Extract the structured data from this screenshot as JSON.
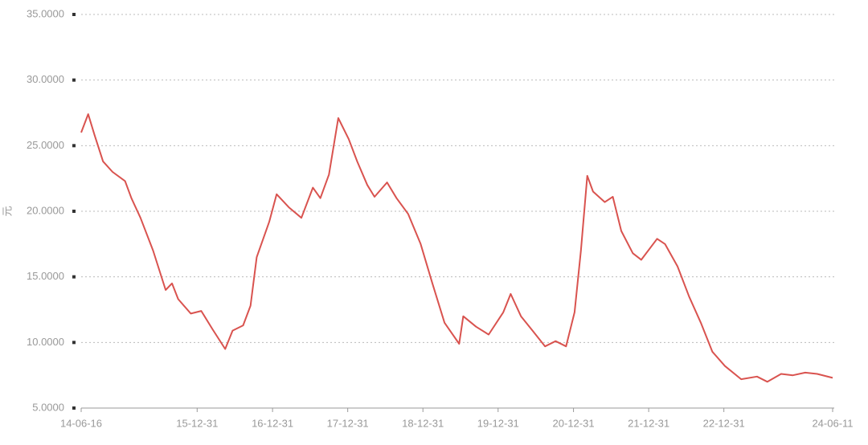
{
  "chart_data": {
    "type": "line",
    "y_label": "元",
    "xlim": [
      "14-06-16",
      "24-06-11"
    ],
    "xticks": [
      "14-06-16",
      "15-12-31",
      "16-12-31",
      "17-12-31",
      "18-12-31",
      "19-12-31",
      "20-12-31",
      "21-12-31",
      "22-12-31",
      "24-06-11"
    ],
    "ylim": [
      5,
      35
    ],
    "yticks": [
      {
        "value": 5,
        "label": "5.0000"
      },
      {
        "value": 10,
        "label": "10.0000"
      },
      {
        "value": 15,
        "label": "15.0000"
      },
      {
        "value": 20,
        "label": "20.0000"
      },
      {
        "value": 25,
        "label": "25.0000"
      },
      {
        "value": 30,
        "label": "30.0000"
      },
      {
        "value": 35,
        "label": "35.0000"
      }
    ],
    "grid": true,
    "x": [
      "14-06-16",
      "14-07-20",
      "14-08-20",
      "14-09-30",
      "14-11-15",
      "15-01-15",
      "15-02-15",
      "15-03-31",
      "15-05-31",
      "15-07-31",
      "15-08-31",
      "15-09-30",
      "15-11-30",
      "16-01-20",
      "16-03-15",
      "16-05-15",
      "16-06-20",
      "16-08-10",
      "16-09-15",
      "16-10-15",
      "16-12-15",
      "17-01-20",
      "17-03-20",
      "17-05-20",
      "17-07-15",
      "17-08-20",
      "17-10-01",
      "17-11-15",
      "18-01-05",
      "18-02-15",
      "18-04-05",
      "18-05-10",
      "18-07-10",
      "18-08-25",
      "18-10-20",
      "18-12-20",
      "19-02-15",
      "19-04-15",
      "19-06-25",
      "19-07-15",
      "19-09-15",
      "19-11-15",
      "20-01-25",
      "20-03-01",
      "20-04-20",
      "20-06-15",
      "20-08-15",
      "20-10-05",
      "20-11-25",
      "21-01-05",
      "21-02-05",
      "21-03-08",
      "21-04-05",
      "21-06-01",
      "21-07-10",
      "21-08-20",
      "21-10-15",
      "21-11-25",
      "22-02-10",
      "22-03-20",
      "22-05-20",
      "22-07-15",
      "22-09-10",
      "22-11-05",
      "23-01-05",
      "23-03-25",
      "23-06-10",
      "23-07-30",
      "23-10-05",
      "23-12-01",
      "24-01-30",
      "24-03-28",
      "24-06-11"
    ],
    "series": [
      {
        "color": "#d9534f",
        "values": [
          26,
          27.4,
          25.8,
          23.8,
          23,
          22.3,
          21,
          19.5,
          17,
          14,
          14.5,
          13.3,
          12.2,
          12.4,
          11,
          9.5,
          10.9,
          11.3,
          12.8,
          16.5,
          19.2,
          21.3,
          20.3,
          19.5,
          21.8,
          21,
          22.8,
          27.1,
          25.5,
          23.8,
          22,
          21.1,
          22.2,
          21,
          19.8,
          17.5,
          14.5,
          11.5,
          9.9,
          12,
          11.2,
          10.6,
          12.3,
          13.7,
          12,
          10.9,
          9.7,
          10.1,
          9.7,
          12.3,
          17,
          22.7,
          21.5,
          20.7,
          21.1,
          18.5,
          16.8,
          16.3,
          17.9,
          17.5,
          15.8,
          13.5,
          11.5,
          9.3,
          8.2,
          7.2,
          7.4,
          7,
          7.6,
          7.5,
          7.7,
          7.6,
          7.3
        ]
      }
    ]
  }
}
